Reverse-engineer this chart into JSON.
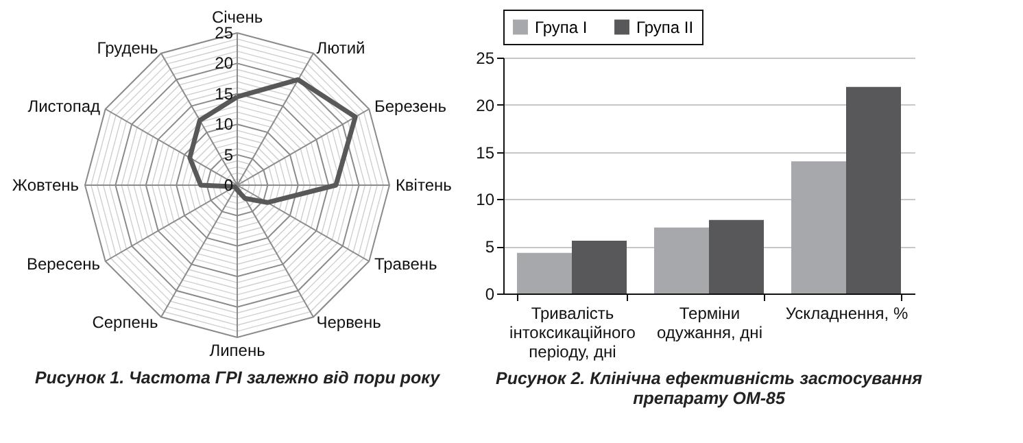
{
  "chart_data": [
    {
      "type": "radar",
      "title": "Рисунок 1.  Частота ГРІ залежно від пори року",
      "categories": [
        "Січень",
        "Лютий",
        "Березень",
        "Квітень",
        "Травень",
        "Червень",
        "Липень",
        "Серпень",
        "Вересень",
        "Жовтень",
        "Листопад",
        "Грудень"
      ],
      "series": [
        {
          "color": "#58585a",
          "values": [
            14.5,
            20,
            22.4,
            16.2,
            5.7,
            2.5,
            0.8,
            0.5,
            0.5,
            6,
            9,
            12.3
          ]
        }
      ],
      "ylim": [
        0,
        25
      ],
      "yticks": [
        0,
        5,
        10,
        15,
        20,
        25
      ],
      "grid": true
    },
    {
      "type": "bar",
      "title": "Рисунок 2.  Клінічна ефективність застосування препарату ОМ-85",
      "categories": [
        "Тривалість інтоксикаційного періоду, дні",
        "Терміни одужання, дні",
        "Ускладнення, %"
      ],
      "series": [
        {
          "name": "Група І",
          "color": "#a7a8ab",
          "values": [
            4.3,
            7,
            14
          ]
        },
        {
          "name": "Група ІІ",
          "color": "#58585a",
          "values": [
            5.6,
            7.8,
            21.9
          ]
        }
      ],
      "ylim": [
        0,
        25
      ],
      "yticks": [
        0,
        5,
        10,
        15,
        20,
        25
      ],
      "grid": "y",
      "legend": "top"
    }
  ]
}
